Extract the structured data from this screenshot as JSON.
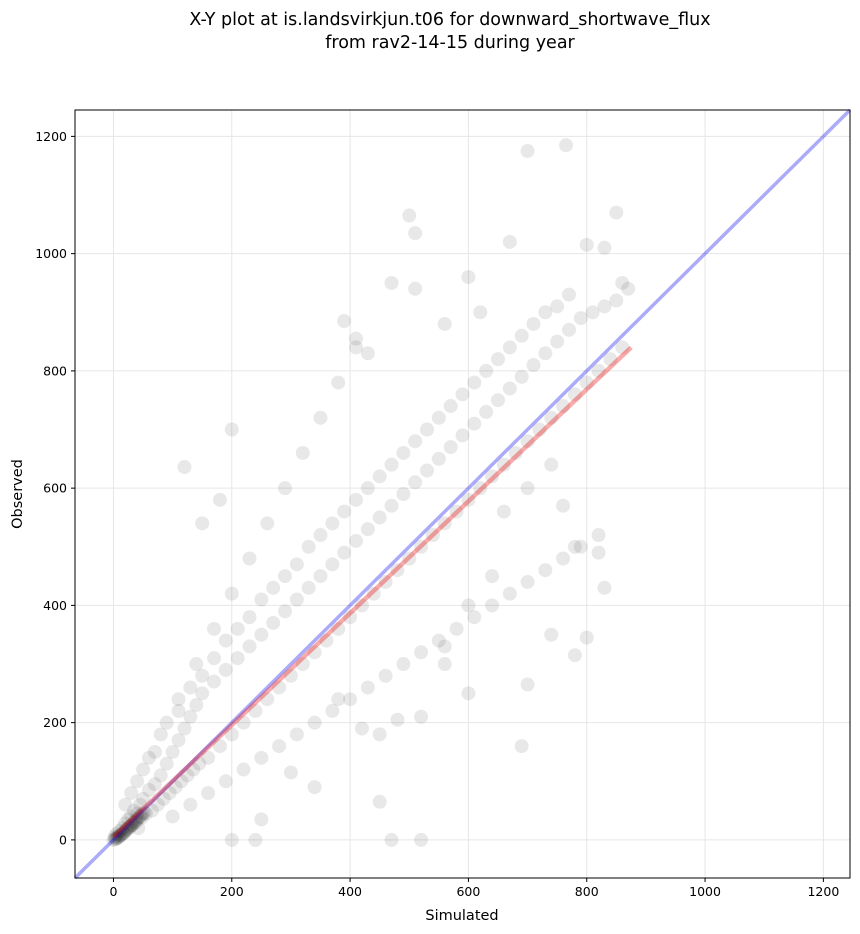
{
  "chart_data": {
    "type": "scatter",
    "title": [
      "X-Y plot at is.landsvirkjun.t06 for downward_shortwave_flux",
      "from rav2-14-15 during year"
    ],
    "xlabel": "Simulated",
    "ylabel": "Observed",
    "xlim": [
      -65,
      1245
    ],
    "ylim": [
      -65,
      1245
    ],
    "xticks": [
      0,
      200,
      400,
      600,
      800,
      1000,
      1200
    ],
    "yticks": [
      0,
      200,
      400,
      600,
      800,
      1000,
      1200
    ],
    "grid": true,
    "colors": {
      "points": "#000000",
      "one_to_one": "#0000ee",
      "fit": "#ee0000"
    },
    "series": [
      {
        "kind": "scatter",
        "points": [
          [
            0,
            0
          ],
          [
            2,
            5
          ],
          [
            4,
            2
          ],
          [
            5,
            10
          ],
          [
            8,
            6
          ],
          [
            10,
            15
          ],
          [
            12,
            8
          ],
          [
            15,
            20
          ],
          [
            18,
            12
          ],
          [
            20,
            28
          ],
          [
            22,
            18
          ],
          [
            25,
            35
          ],
          [
            28,
            22
          ],
          [
            30,
            40
          ],
          [
            32,
            25
          ],
          [
            35,
            50
          ],
          [
            38,
            30
          ],
          [
            40,
            45
          ],
          [
            42,
            20
          ],
          [
            45,
            60
          ],
          [
            48,
            38
          ],
          [
            50,
            70
          ],
          [
            55,
            45
          ],
          [
            60,
            85
          ],
          [
            65,
            50
          ],
          [
            70,
            95
          ],
          [
            75,
            60
          ],
          [
            80,
            110
          ],
          [
            85,
            70
          ],
          [
            90,
            130
          ],
          [
            95,
            80
          ],
          [
            100,
            150
          ],
          [
            105,
            90
          ],
          [
            110,
            170
          ],
          [
            115,
            100
          ],
          [
            120,
            190
          ],
          [
            125,
            110
          ],
          [
            130,
            210
          ],
          [
            135,
            120
          ],
          [
            140,
            230
          ],
          [
            145,
            130
          ],
          [
            150,
            250
          ],
          [
            160,
            140
          ],
          [
            170,
            270
          ],
          [
            180,
            160
          ],
          [
            190,
            290
          ],
          [
            200,
            180
          ],
          [
            210,
            310
          ],
          [
            220,
            200
          ],
          [
            230,
            330
          ],
          [
            240,
            220
          ],
          [
            250,
            350
          ],
          [
            260,
            240
          ],
          [
            270,
            370
          ],
          [
            280,
            260
          ],
          [
            290,
            390
          ],
          [
            300,
            280
          ],
          [
            310,
            410
          ],
          [
            320,
            300
          ],
          [
            330,
            430
          ],
          [
            340,
            320
          ],
          [
            350,
            450
          ],
          [
            360,
            340
          ],
          [
            370,
            470
          ],
          [
            380,
            360
          ],
          [
            390,
            490
          ],
          [
            400,
            380
          ],
          [
            410,
            510
          ],
          [
            420,
            400
          ],
          [
            430,
            530
          ],
          [
            440,
            420
          ],
          [
            450,
            550
          ],
          [
            460,
            440
          ],
          [
            470,
            570
          ],
          [
            480,
            460
          ],
          [
            490,
            590
          ],
          [
            500,
            480
          ],
          [
            510,
            610
          ],
          [
            520,
            500
          ],
          [
            530,
            630
          ],
          [
            540,
            520
          ],
          [
            550,
            650
          ],
          [
            560,
            540
          ],
          [
            570,
            670
          ],
          [
            580,
            560
          ],
          [
            590,
            690
          ],
          [
            600,
            580
          ],
          [
            610,
            710
          ],
          [
            620,
            600
          ],
          [
            630,
            730
          ],
          [
            640,
            620
          ],
          [
            650,
            750
          ],
          [
            660,
            640
          ],
          [
            670,
            770
          ],
          [
            680,
            660
          ],
          [
            690,
            790
          ],
          [
            700,
            680
          ],
          [
            710,
            810
          ],
          [
            720,
            700
          ],
          [
            730,
            830
          ],
          [
            740,
            720
          ],
          [
            750,
            850
          ],
          [
            760,
            740
          ],
          [
            770,
            870
          ],
          [
            780,
            760
          ],
          [
            790,
            890
          ],
          [
            800,
            780
          ],
          [
            810,
            900
          ],
          [
            820,
            800
          ],
          [
            830,
            910
          ],
          [
            840,
            820
          ],
          [
            850,
            920
          ],
          [
            860,
            840
          ],
          [
            870,
            940
          ],
          [
            100,
            40
          ],
          [
            130,
            60
          ],
          [
            160,
            80
          ],
          [
            190,
            100
          ],
          [
            220,
            120
          ],
          [
            250,
            140
          ],
          [
            280,
            160
          ],
          [
            310,
            180
          ],
          [
            340,
            200
          ],
          [
            370,
            220
          ],
          [
            400,
            240
          ],
          [
            430,
            260
          ],
          [
            460,
            280
          ],
          [
            490,
            300
          ],
          [
            520,
            320
          ],
          [
            550,
            340
          ],
          [
            580,
            360
          ],
          [
            610,
            380
          ],
          [
            640,
            400
          ],
          [
            670,
            420
          ],
          [
            700,
            440
          ],
          [
            730,
            460
          ],
          [
            760,
            480
          ],
          [
            790,
            500
          ],
          [
            820,
            520
          ],
          [
            50,
            120
          ],
          [
            80,
            180
          ],
          [
            110,
            240
          ],
          [
            140,
            300
          ],
          [
            170,
            360
          ],
          [
            200,
            420
          ],
          [
            230,
            480
          ],
          [
            260,
            540
          ],
          [
            290,
            600
          ],
          [
            320,
            660
          ],
          [
            350,
            720
          ],
          [
            380,
            780
          ],
          [
            410,
            840
          ],
          [
            120,
            636
          ],
          [
            200,
            700
          ],
          [
            180,
            580
          ],
          [
            150,
            540
          ],
          [
            390,
            885
          ],
          [
            410,
            855
          ],
          [
            430,
            830
          ],
          [
            470,
            950
          ],
          [
            500,
            1065
          ],
          [
            510,
            1035
          ],
          [
            510,
            940
          ],
          [
            560,
            880
          ],
          [
            600,
            960
          ],
          [
            620,
            900
          ],
          [
            670,
            1020
          ],
          [
            700,
            1175
          ],
          [
            765,
            1185
          ],
          [
            800,
            1015
          ],
          [
            830,
            1010
          ],
          [
            850,
            1070
          ],
          [
            860,
            950
          ],
          [
            450,
            65
          ],
          [
            470,
            0
          ],
          [
            520,
            0
          ],
          [
            200,
            0
          ],
          [
            240,
            0
          ],
          [
            250,
            35
          ],
          [
            300,
            115
          ],
          [
            340,
            90
          ],
          [
            380,
            240
          ],
          [
            420,
            190
          ],
          [
            450,
            180
          ],
          [
            480,
            205
          ],
          [
            520,
            210
          ],
          [
            560,
            300
          ],
          [
            600,
            250
          ],
          [
            690,
            160
          ],
          [
            700,
            265
          ],
          [
            740,
            350
          ],
          [
            780,
            315
          ],
          [
            800,
            345
          ],
          [
            830,
            430
          ],
          [
            820,
            490
          ],
          [
            780,
            500
          ],
          [
            760,
            570
          ],
          [
            740,
            640
          ],
          [
            700,
            600
          ],
          [
            660,
            560
          ],
          [
            640,
            450
          ],
          [
            600,
            400
          ],
          [
            560,
            330
          ],
          [
            20,
            60
          ],
          [
            30,
            80
          ],
          [
            40,
            100
          ],
          [
            60,
            140
          ],
          [
            70,
            150
          ],
          [
            90,
            200
          ],
          [
            110,
            220
          ],
          [
            130,
            260
          ],
          [
            150,
            280
          ],
          [
            170,
            310
          ],
          [
            190,
            340
          ],
          [
            210,
            360
          ],
          [
            230,
            380
          ],
          [
            250,
            410
          ],
          [
            270,
            430
          ],
          [
            290,
            450
          ],
          [
            310,
            470
          ],
          [
            330,
            500
          ],
          [
            350,
            520
          ],
          [
            370,
            540
          ],
          [
            390,
            560
          ],
          [
            410,
            580
          ],
          [
            430,
            600
          ],
          [
            450,
            620
          ],
          [
            470,
            640
          ],
          [
            490,
            660
          ],
          [
            510,
            680
          ],
          [
            530,
            700
          ],
          [
            550,
            720
          ],
          [
            570,
            740
          ],
          [
            590,
            760
          ],
          [
            610,
            780
          ],
          [
            630,
            800
          ],
          [
            650,
            820
          ],
          [
            670,
            840
          ],
          [
            690,
            860
          ],
          [
            710,
            880
          ],
          [
            730,
            900
          ],
          [
            750,
            910
          ],
          [
            770,
            930
          ],
          [
            3,
            1
          ],
          [
            6,
            3
          ],
          [
            9,
            4
          ],
          [
            11,
            7
          ],
          [
            14,
            9
          ],
          [
            16,
            11
          ],
          [
            19,
            14
          ],
          [
            21,
            16
          ],
          [
            24,
            19
          ],
          [
            26,
            21
          ],
          [
            29,
            24
          ],
          [
            31,
            26
          ],
          [
            34,
            29
          ],
          [
            36,
            31
          ],
          [
            39,
            34
          ],
          [
            41,
            36
          ],
          [
            44,
            39
          ],
          [
            46,
            41
          ],
          [
            49,
            44
          ],
          [
            52,
            47
          ]
        ]
      },
      {
        "kind": "line",
        "name": "",
        "x": [
          -65,
          1245
        ],
        "y": [
          -65,
          1245
        ]
      },
      {
        "kind": "line",
        "name": "",
        "x": [
          0,
          875
        ],
        "y": [
          5,
          840
        ]
      }
    ]
  }
}
